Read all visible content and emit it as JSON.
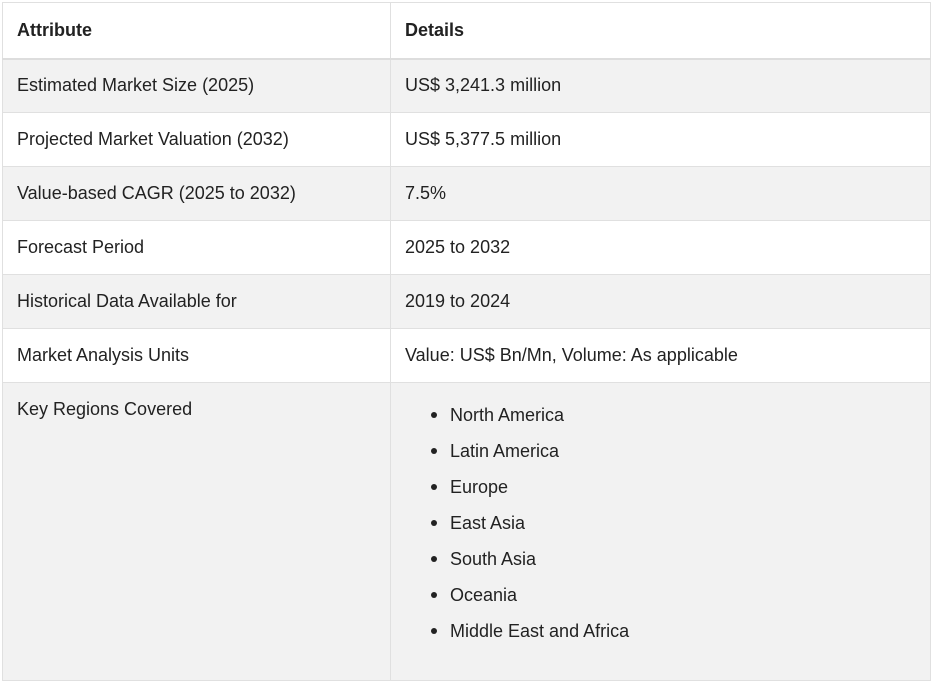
{
  "table": {
    "headers": {
      "attribute": "Attribute",
      "details": "Details"
    },
    "rows": [
      {
        "attribute": "Estimated Market Size (2025)",
        "details": "US$ 3,241.3 million"
      },
      {
        "attribute": "Projected Market Valuation (2032)",
        "details": "US$ 5,377.5 million"
      },
      {
        "attribute": "Value-based CAGR (2025 to 2032)",
        "details": "7.5%"
      },
      {
        "attribute": "Forecast Period",
        "details": "2025 to 2032"
      },
      {
        "attribute": "Historical Data Available for",
        "details": "2019 to 2024"
      },
      {
        "attribute": "Market Analysis Units",
        "details": "Value: US$ Bn/Mn, Volume: As applicable"
      }
    ],
    "regions_row": {
      "attribute": "Key Regions Covered",
      "items": [
        "North America",
        "Latin America",
        "Europe",
        "East Asia",
        "South Asia",
        "Oceania",
        "Middle East and Africa"
      ]
    }
  }
}
